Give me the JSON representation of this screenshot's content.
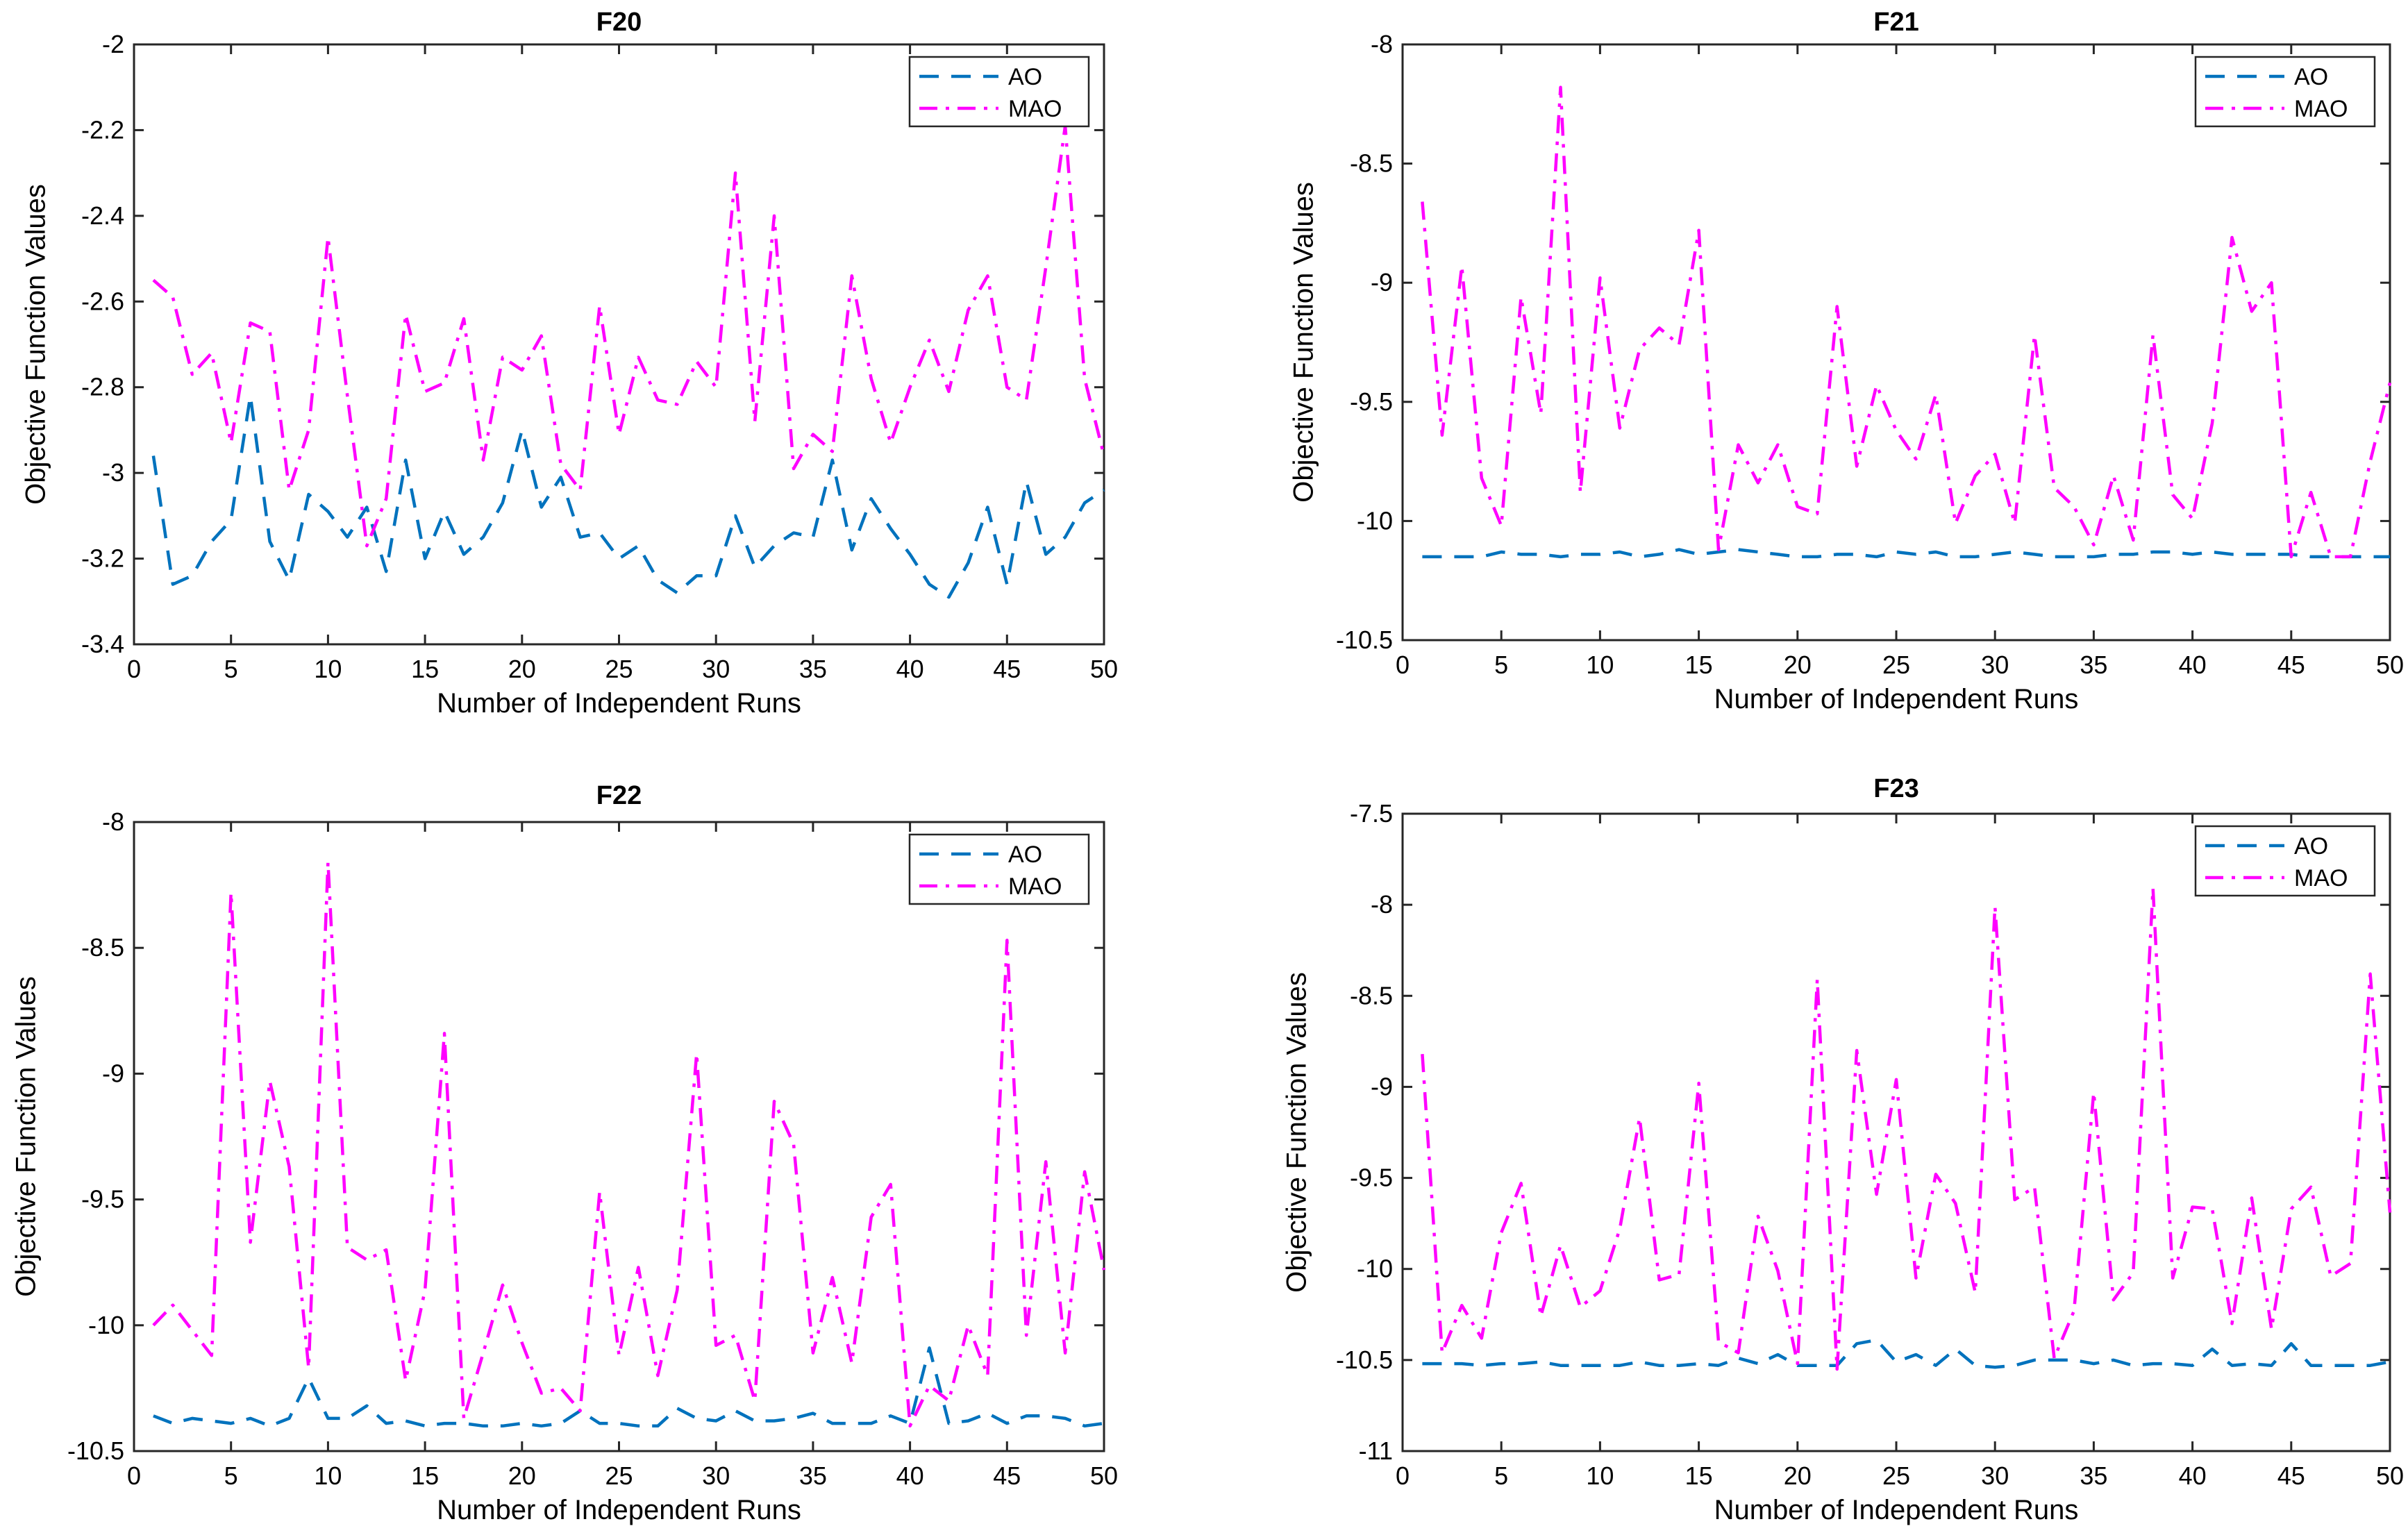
{
  "chart_data": [
    {
      "type": "line",
      "title": "F20",
      "xlabel": "Number of Independent Runs",
      "ylabel": "Objective Function Values",
      "xlim": [
        0,
        50
      ],
      "ylim": [
        -3.4,
        -2
      ],
      "xticks": [
        0,
        5,
        10,
        15,
        20,
        25,
        30,
        35,
        40,
        45,
        50
      ],
      "xtick_labels": [
        "0",
        "5",
        "10",
        "15",
        "20",
        "25",
        "30",
        "35",
        "40",
        "45",
        "50"
      ],
      "yticks": [
        -3.4,
        -3.2,
        -3,
        -2.8,
        -2.6,
        -2.4,
        -2.2,
        -2
      ],
      "ytick_labels": [
        "-3.4",
        "-3.2",
        "-3",
        "-2.8",
        "-2.6",
        "-2.4",
        "-2.2",
        "-2"
      ],
      "legend_position": "top-right",
      "x": [
        1,
        2,
        3,
        4,
        5,
        6,
        7,
        8,
        9,
        10,
        11,
        12,
        13,
        14,
        15,
        16,
        17,
        18,
        19,
        20,
        21,
        22,
        23,
        24,
        25,
        26,
        27,
        28,
        29,
        30,
        31,
        32,
        33,
        34,
        35,
        36,
        37,
        38,
        39,
        40,
        41,
        42,
        43,
        44,
        45,
        46,
        47,
        48,
        49,
        50
      ],
      "series": [
        {
          "name": "AO",
          "color": "#0072BD",
          "dash": "dashed",
          "values": [
            -2.96,
            -3.26,
            -3.24,
            -3.16,
            -3.11,
            -2.82,
            -3.16,
            -3.25,
            -3.05,
            -3.09,
            -3.15,
            -3.08,
            -3.23,
            -2.97,
            -3.2,
            -3.09,
            -3.19,
            -3.15,
            -3.07,
            -2.9,
            -3.08,
            -3.01,
            -3.15,
            -3.14,
            -3.2,
            -3.17,
            -3.25,
            -3.28,
            -3.24,
            -3.24,
            -3.1,
            -3.22,
            -3.17,
            -3.14,
            -3.15,
            -2.97,
            -3.18,
            -3.06,
            -3.13,
            -3.19,
            -3.26,
            -3.29,
            -3.21,
            -3.08,
            -3.26,
            -3.02,
            -3.19,
            -3.15,
            -3.07,
            -3.04
          ]
        },
        {
          "name": "MAO",
          "color": "#FF00FF",
          "dash": "dashdot",
          "values": [
            -2.55,
            -2.59,
            -2.77,
            -2.72,
            -2.93,
            -2.65,
            -2.67,
            -3.04,
            -2.9,
            -2.45,
            -2.82,
            -3.17,
            -3.06,
            -2.63,
            -2.81,
            -2.79,
            -2.64,
            -2.97,
            -2.73,
            -2.76,
            -2.68,
            -2.98,
            -3.04,
            -2.61,
            -2.91,
            -2.73,
            -2.83,
            -2.84,
            -2.74,
            -2.8,
            -2.3,
            -2.88,
            -2.4,
            -2.99,
            -2.91,
            -2.95,
            -2.54,
            -2.78,
            -2.93,
            -2.8,
            -2.69,
            -2.81,
            -2.62,
            -2.54,
            -2.8,
            -2.83,
            -2.52,
            -2.19,
            -2.78,
            -2.96
          ]
        }
      ]
    },
    {
      "type": "line",
      "title": "F21",
      "xlabel": "Number of Independent Runs",
      "ylabel": "Objective Function Values",
      "xlim": [
        0,
        50
      ],
      "ylim": [
        -10.5,
        -8
      ],
      "xticks": [
        0,
        5,
        10,
        15,
        20,
        25,
        30,
        35,
        40,
        45,
        50
      ],
      "xtick_labels": [
        "0",
        "5",
        "10",
        "15",
        "20",
        "25",
        "30",
        "35",
        "40",
        "45",
        "50"
      ],
      "yticks": [
        -10.5,
        -10,
        -9.5,
        -9,
        -8.5,
        -8
      ],
      "ytick_labels": [
        "-10.5",
        "-10",
        "-9.5",
        "-9",
        "-8.5",
        "-8"
      ],
      "legend_position": "top-right",
      "x": [
        1,
        2,
        3,
        4,
        5,
        6,
        7,
        8,
        9,
        10,
        11,
        12,
        13,
        14,
        15,
        16,
        17,
        18,
        19,
        20,
        21,
        22,
        23,
        24,
        25,
        26,
        27,
        28,
        29,
        30,
        31,
        32,
        33,
        34,
        35,
        36,
        37,
        38,
        39,
        40,
        41,
        42,
        43,
        44,
        45,
        46,
        47,
        48,
        49,
        50
      ],
      "series": [
        {
          "name": "AO",
          "color": "#0072BD",
          "dash": "dashed",
          "values": [
            -10.15,
            -10.15,
            -10.15,
            -10.15,
            -10.13,
            -10.14,
            -10.14,
            -10.15,
            -10.14,
            -10.14,
            -10.13,
            -10.15,
            -10.14,
            -10.12,
            -10.14,
            -10.13,
            -10.12,
            -10.13,
            -10.14,
            -10.15,
            -10.15,
            -10.14,
            -10.14,
            -10.15,
            -10.13,
            -10.14,
            -10.13,
            -10.15,
            -10.15,
            -10.14,
            -10.13,
            -10.14,
            -10.15,
            -10.15,
            -10.15,
            -10.14,
            -10.14,
            -10.13,
            -10.13,
            -10.14,
            -10.13,
            -10.14,
            -10.14,
            -10.14,
            -10.14,
            -10.15,
            -10.15,
            -10.15,
            -10.15,
            -10.15
          ]
        },
        {
          "name": "MAO",
          "color": "#FF00FF",
          "dash": "dashdot",
          "values": [
            -8.66,
            -9.64,
            -8.93,
            -9.82,
            -10.02,
            -9.06,
            -9.55,
            -8.18,
            -9.88,
            -8.98,
            -9.61,
            -9.28,
            -9.19,
            -9.26,
            -8.78,
            -10.12,
            -9.68,
            -9.84,
            -9.68,
            -9.94,
            -9.97,
            -9.1,
            -9.77,
            -9.43,
            -9.62,
            -9.74,
            -9.47,
            -10.01,
            -9.81,
            -9.72,
            -10.01,
            -9.22,
            -9.86,
            -9.94,
            -10.1,
            -9.81,
            -10.08,
            -9.22,
            -9.89,
            -9.99,
            -9.59,
            -8.81,
            -9.12,
            -9.0,
            -10.15,
            -9.88,
            -10.15,
            -10.15,
            -9.75,
            -9.42
          ]
        }
      ]
    },
    {
      "type": "line",
      "title": "F22",
      "xlabel": "Number of Independent Runs",
      "ylabel": "Objective Function Values",
      "xlim": [
        0,
        50
      ],
      "ylim": [
        -10.5,
        -8
      ],
      "xticks": [
        0,
        5,
        10,
        15,
        20,
        25,
        30,
        35,
        40,
        45,
        50
      ],
      "xtick_labels": [
        "0",
        "5",
        "10",
        "15",
        "20",
        "25",
        "30",
        "35",
        "40",
        "45",
        "50"
      ],
      "yticks": [
        -10.5,
        -10,
        -9.5,
        -9,
        -8.5,
        -8
      ],
      "ytick_labels": [
        "-10.5",
        "-10",
        "-9.5",
        "-9",
        "-8.5",
        "-8"
      ],
      "legend_position": "top-right",
      "x": [
        1,
        2,
        3,
        4,
        5,
        6,
        7,
        8,
        9,
        10,
        11,
        12,
        13,
        14,
        15,
        16,
        17,
        18,
        19,
        20,
        21,
        22,
        23,
        24,
        25,
        26,
        27,
        28,
        29,
        30,
        31,
        32,
        33,
        34,
        35,
        36,
        37,
        38,
        39,
        40,
        41,
        42,
        43,
        44,
        45,
        46,
        47,
        48,
        49,
        50
      ],
      "series": [
        {
          "name": "AO",
          "color": "#0072BD",
          "dash": "dashed",
          "values": [
            -10.36,
            -10.39,
            -10.37,
            -10.38,
            -10.39,
            -10.37,
            -10.4,
            -10.37,
            -10.21,
            -10.37,
            -10.37,
            -10.32,
            -10.39,
            -10.38,
            -10.4,
            -10.39,
            -10.39,
            -10.4,
            -10.4,
            -10.39,
            -10.4,
            -10.39,
            -10.34,
            -10.39,
            -10.39,
            -10.4,
            -10.4,
            -10.33,
            -10.37,
            -10.38,
            -10.34,
            -10.38,
            -10.38,
            -10.37,
            -10.35,
            -10.39,
            -10.39,
            -10.39,
            -10.36,
            -10.39,
            -10.09,
            -10.39,
            -10.38,
            -10.35,
            -10.39,
            -10.36,
            -10.36,
            -10.37,
            -10.4,
            -10.39
          ]
        },
        {
          "name": "MAO",
          "color": "#FF00FF",
          "dash": "dashdot",
          "values": [
            -10.0,
            -9.92,
            -10.02,
            -10.12,
            -8.28,
            -9.67,
            -9.03,
            -9.37,
            -10.17,
            -8.16,
            -9.69,
            -9.74,
            -9.7,
            -10.22,
            -9.86,
            -8.84,
            -10.37,
            -10.11,
            -9.84,
            -10.07,
            -10.27,
            -10.25,
            -10.34,
            -9.47,
            -10.12,
            -9.77,
            -10.2,
            -9.86,
            -8.92,
            -10.08,
            -10.04,
            -10.3,
            -9.11,
            -9.28,
            -10.11,
            -9.81,
            -10.15,
            -9.57,
            -9.44,
            -10.4,
            -10.24,
            -10.3,
            -10.0,
            -10.2,
            -8.47,
            -10.04,
            -9.35,
            -10.11,
            -9.39,
            -9.78
          ]
        }
      ]
    },
    {
      "type": "line",
      "title": "F23",
      "xlabel": "Number of Independent Runs",
      "ylabel": "Objective Function Values",
      "xlim": [
        0,
        50
      ],
      "ylim": [
        -11,
        -7.5
      ],
      "xticks": [
        0,
        5,
        10,
        15,
        20,
        25,
        30,
        35,
        40,
        45,
        50
      ],
      "xtick_labels": [
        "0",
        "5",
        "10",
        "15",
        "20",
        "25",
        "30",
        "35",
        "40",
        "45",
        "50"
      ],
      "yticks": [
        -11,
        -10.5,
        -10,
        -9.5,
        -9,
        -8.5,
        -8,
        -7.5
      ],
      "ytick_labels": [
        "-11",
        "-10.5",
        "-10",
        "-9.5",
        "-9",
        "-8.5",
        "-8",
        "-7.5"
      ],
      "legend_position": "top-right",
      "x": [
        1,
        2,
        3,
        4,
        5,
        6,
        7,
        8,
        9,
        10,
        11,
        12,
        13,
        14,
        15,
        16,
        17,
        18,
        19,
        20,
        21,
        22,
        23,
        24,
        25,
        26,
        27,
        28,
        29,
        30,
        31,
        32,
        33,
        34,
        35,
        36,
        37,
        38,
        39,
        40,
        41,
        42,
        43,
        44,
        45,
        46,
        47,
        48,
        49,
        50
      ],
      "series": [
        {
          "name": "AO",
          "color": "#0072BD",
          "dash": "dashed",
          "values": [
            -10.52,
            -10.52,
            -10.52,
            -10.53,
            -10.52,
            -10.52,
            -10.51,
            -10.53,
            -10.53,
            -10.53,
            -10.53,
            -10.51,
            -10.53,
            -10.53,
            -10.52,
            -10.53,
            -10.49,
            -10.52,
            -10.47,
            -10.53,
            -10.53,
            -10.53,
            -10.41,
            -10.39,
            -10.51,
            -10.47,
            -10.53,
            -10.44,
            -10.53,
            -10.54,
            -10.53,
            -10.5,
            -10.5,
            -10.5,
            -10.52,
            -10.5,
            -10.53,
            -10.52,
            -10.52,
            -10.53,
            -10.44,
            -10.53,
            -10.52,
            -10.53,
            -10.41,
            -10.53,
            -10.53,
            -10.53,
            -10.53,
            -10.51
          ]
        },
        {
          "name": "MAO",
          "color": "#FF00FF",
          "dash": "dashdot",
          "values": [
            -8.82,
            -10.46,
            -10.2,
            -10.38,
            -9.8,
            -9.53,
            -10.26,
            -9.87,
            -10.21,
            -10.12,
            -9.78,
            -9.17,
            -10.06,
            -10.03,
            -8.98,
            -10.4,
            -10.46,
            -9.71,
            -10.01,
            -10.52,
            -8.41,
            -10.55,
            -8.8,
            -9.59,
            -8.96,
            -10.05,
            -9.48,
            -9.64,
            -10.13,
            -8.01,
            -9.62,
            -9.55,
            -10.49,
            -10.23,
            -9.03,
            -10.17,
            -10.02,
            -7.91,
            -10.05,
            -9.66,
            -9.67,
            -10.3,
            -9.61,
            -10.33,
            -9.67,
            -9.55,
            -10.04,
            -9.97,
            -8.38,
            -9.69
          ]
        }
      ]
    }
  ]
}
